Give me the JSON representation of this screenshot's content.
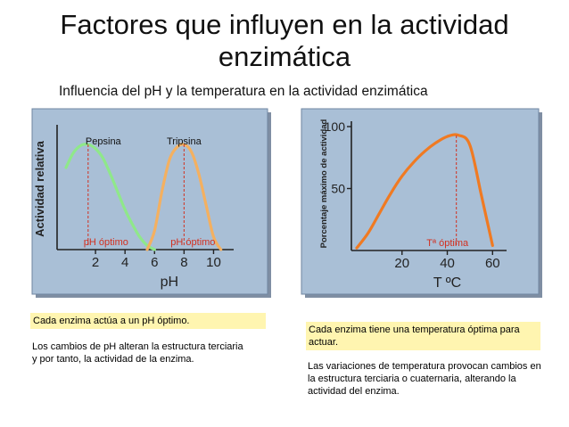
{
  "title": "Factores que influyen en la actividad enzimática",
  "subtitle": "Influencia del pH y la temperatura en la actividad enzimática",
  "notes": {
    "ph_highlight": "Cada enzima actúa a un pH óptimo.",
    "ph_text": "Los cambios de pH alteran la estructura terciaria y por tanto, la actividad de la enzima.",
    "temp_highlight": "Cada enzima tiene una temperatura óptima para actuar.",
    "temp_text": "Las variaciones de temperatura provocan cambios en la estructura terciaria o cuaternaria, alterando la actividad del enzima."
  },
  "colors": {
    "panel_bg": "#a9bfd6",
    "pepsina": "#8fe88a",
    "tripsina": "#f4b060",
    "temp_curve": "#f07a22",
    "optimum_line": "#d23020"
  },
  "chart_data": [
    {
      "type": "line",
      "ylabel": "Actividad relativa",
      "xlabel": "pH",
      "x_ticks": [
        2,
        4,
        6,
        8,
        10
      ],
      "xlim": [
        0,
        11
      ],
      "series": [
        {
          "name": "Pepsina",
          "x": [
            0,
            0.5,
            1,
            1.5,
            2,
            2.5,
            3,
            3.5,
            4,
            4.5,
            5,
            5.5,
            6
          ],
          "y": [
            0.78,
            0.92,
            0.99,
            1.0,
            0.96,
            0.87,
            0.72,
            0.55,
            0.38,
            0.24,
            0.12,
            0.04,
            0.0
          ],
          "optimum": 1.5,
          "optimum_label": "pH óptimo"
        },
        {
          "name": "Tripsina",
          "x": [
            5.5,
            6,
            6.5,
            7,
            7.5,
            8,
            8.5,
            9,
            9.5,
            10,
            10.5
          ],
          "y": [
            0.0,
            0.18,
            0.55,
            0.85,
            0.97,
            1.0,
            0.93,
            0.72,
            0.42,
            0.12,
            0.0
          ],
          "optimum": 8,
          "optimum_label": "pH óptimo"
        }
      ]
    },
    {
      "type": "line",
      "ylabel": "Porcentaje máximo de actividad",
      "xlabel": "T ºC",
      "x_ticks": [
        20,
        40,
        60
      ],
      "y_ticks": [
        50,
        100
      ],
      "xlim": [
        0,
        65
      ],
      "ylim": [
        0,
        100
      ],
      "series": [
        {
          "name": "",
          "x": [
            0,
            5,
            10,
            15,
            20,
            25,
            30,
            35,
            40,
            45,
            50,
            55,
            60
          ],
          "y": [
            2,
            14,
            30,
            46,
            60,
            71,
            80,
            87,
            92,
            93,
            85,
            45,
            4
          ],
          "optimum": 44,
          "optimum_label": "Tª óptima"
        }
      ]
    }
  ]
}
